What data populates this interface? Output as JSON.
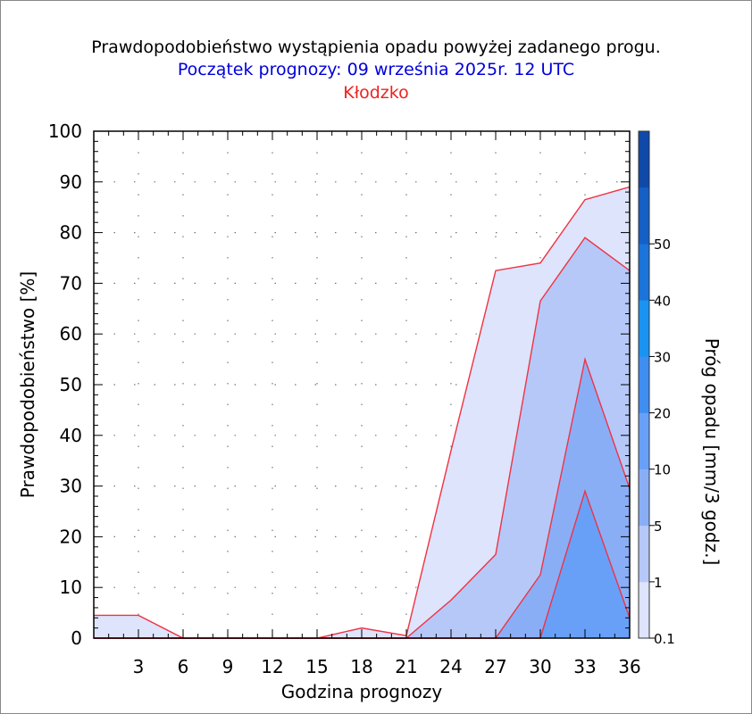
{
  "chart_data": {
    "type": "area",
    "title": "Prawdopodobieństwo wystąpienia opadu powyżej zadanego progu.",
    "subtitle": "Początek prognozy: 09 września 2025r. 12 UTC",
    "location": "Kłodzko",
    "xlabel": "Godzina prognozy",
    "ylabel": "Prawdopodobieństwo [%]",
    "colorbar_label": "Próg opadu [mm/3 godz.]",
    "xlim": [
      0,
      36
    ],
    "ylim": [
      0,
      100
    ],
    "x": [
      0,
      3,
      6,
      9,
      12,
      15,
      18,
      21,
      24,
      27,
      30,
      33,
      36
    ],
    "x_ticks": [
      "3",
      "6",
      "9",
      "12",
      "15",
      "18",
      "21",
      "24",
      "27",
      "30",
      "33",
      "36"
    ],
    "y_ticks": [
      "0",
      "10",
      "20",
      "30",
      "40",
      "50",
      "60",
      "70",
      "80",
      "90",
      "100"
    ],
    "grid": true,
    "series": [
      {
        "name": "0.1",
        "color": "#dde4fb",
        "values": [
          4.5,
          4.5,
          0,
          0,
          0,
          0,
          2,
          0.5,
          37,
          72.5,
          74,
          86.5,
          89
        ]
      },
      {
        "name": "1",
        "color": "#b6c8f8",
        "values": [
          0,
          0,
          0,
          0,
          0,
          0,
          0,
          0,
          7.5,
          16.5,
          66.5,
          79,
          72.5
        ]
      },
      {
        "name": "5",
        "color": "#8aaef6",
        "values": [
          0,
          0,
          0,
          0,
          0,
          0,
          0,
          0,
          0,
          0,
          12.5,
          55,
          29.5
        ]
      },
      {
        "name": "10",
        "color": "#68a0f8",
        "values": [
          0,
          0,
          0,
          0,
          0,
          0,
          0,
          0,
          0,
          0,
          0,
          29,
          4
        ]
      }
    ],
    "colorbar": {
      "ticks": [
        "0.1",
        "1",
        "5",
        "10",
        "20",
        "30",
        "40",
        "50"
      ],
      "colors": [
        "#dde4fb",
        "#b6c8f8",
        "#8aaef6",
        "#68a0f8",
        "#3f8ef2",
        "#1a94f2",
        "#1b74da",
        "#1560c6",
        "#0f4aaa"
      ]
    },
    "line_color": "#ee3344"
  }
}
